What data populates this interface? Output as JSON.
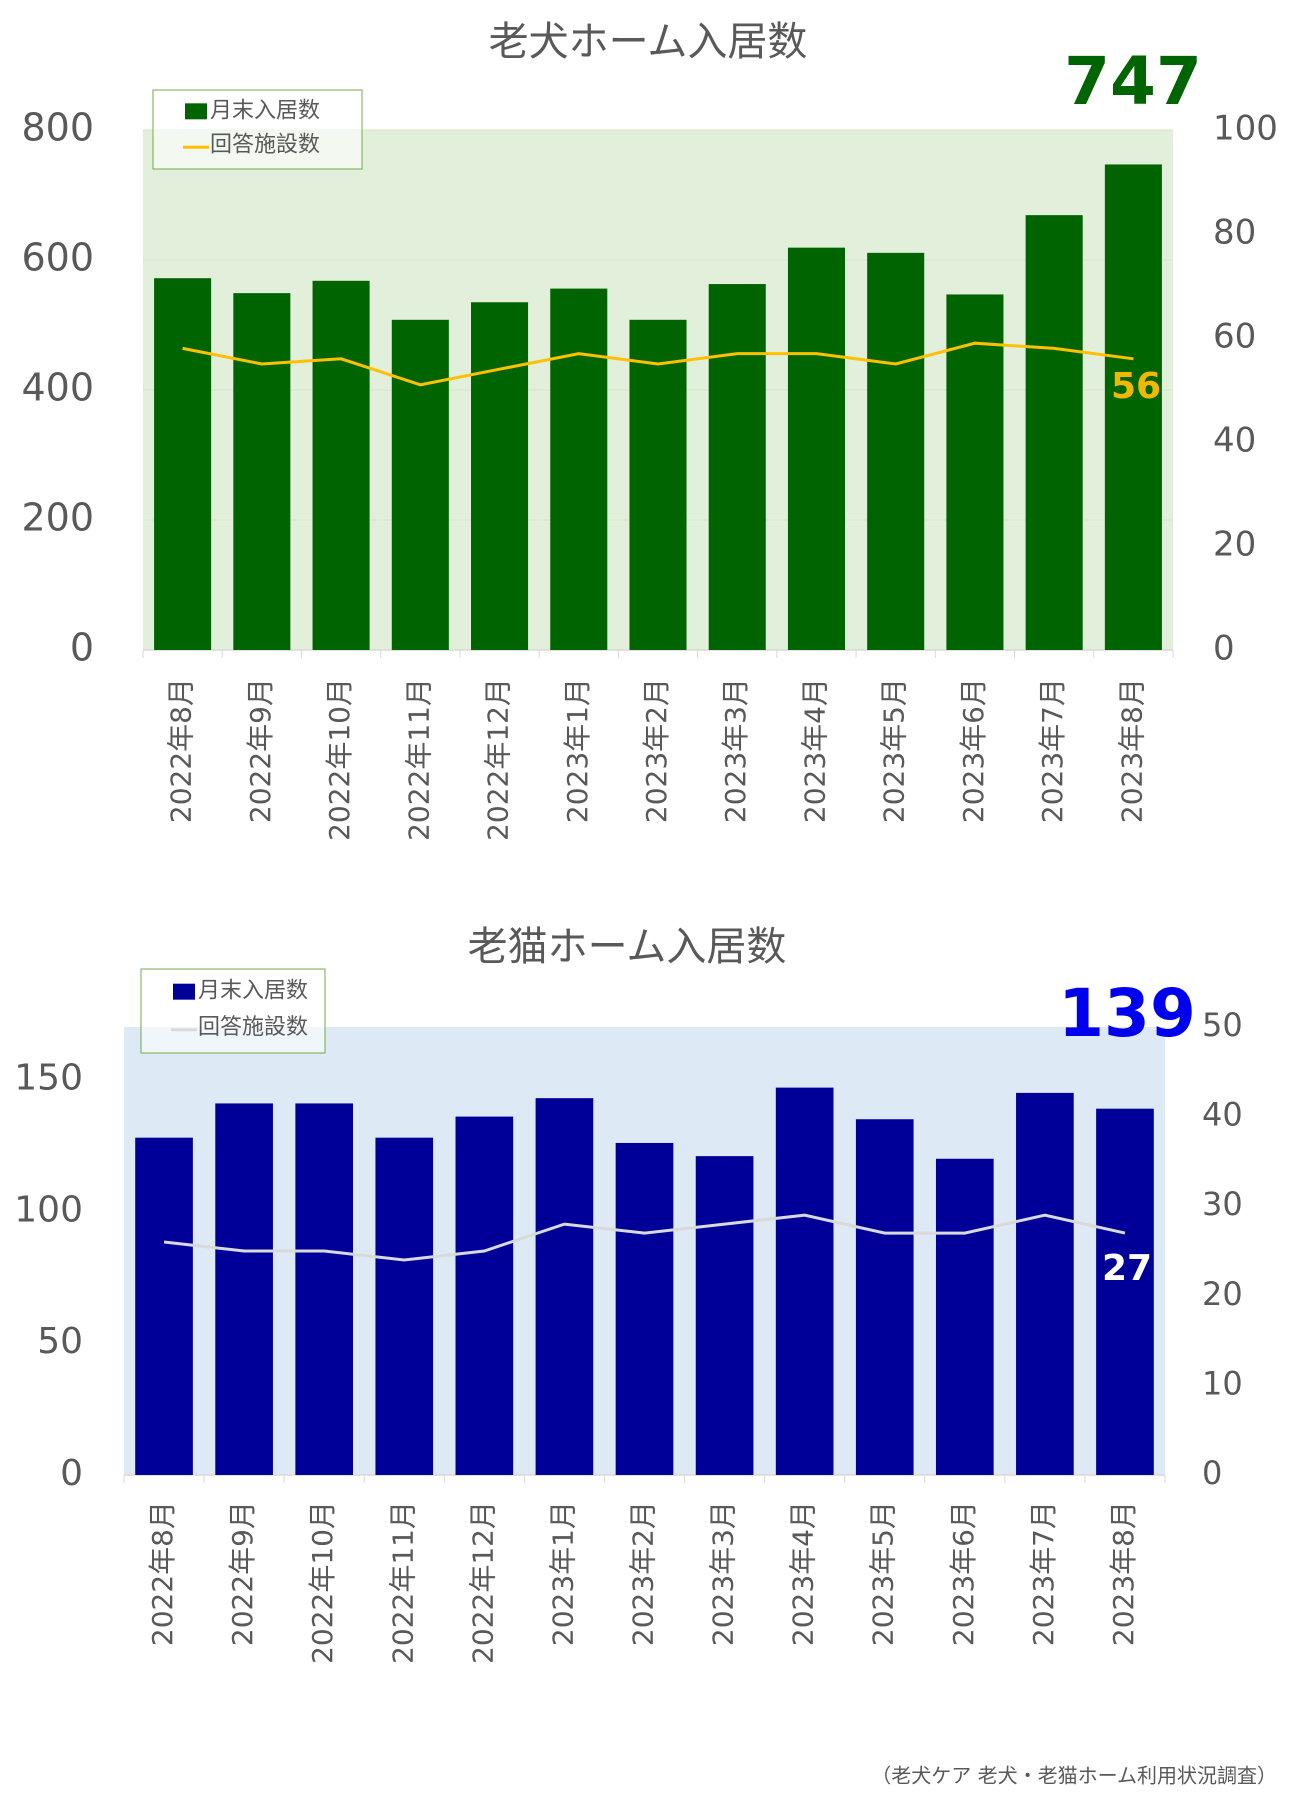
{
  "chart_data": [
    {
      "type": "bar",
      "title": "老犬ホーム入居数",
      "categories": [
        "2022年8月",
        "2022年9月",
        "2022年10月",
        "2022年11月",
        "2022年12月",
        "2023年1月",
        "2023年2月",
        "2023年3月",
        "2023年4月",
        "2023年5月",
        "2023年6月",
        "2023年7月",
        "2023年8月"
      ],
      "series": [
        {
          "name": "月末入居数",
          "type": "bar",
          "color": "#006400",
          "values": [
            572,
            549,
            568,
            508,
            535,
            556,
            508,
            563,
            619,
            611,
            547,
            669,
            747
          ]
        },
        {
          "name": "回答施設数",
          "type": "line",
          "axis": "y2",
          "color": "#ffc000",
          "values": [
            58,
            55,
            56,
            51,
            54,
            57,
            55,
            57,
            57,
            55,
            59,
            58,
            56
          ]
        }
      ],
      "ylim": [
        0,
        800
      ],
      "yticks": [
        0,
        200,
        400,
        600,
        800
      ],
      "y2lim": [
        0,
        100
      ],
      "y2ticks": [
        0,
        20,
        40,
        60,
        80,
        100
      ],
      "grid": true,
      "legend": "top-left",
      "plot_background": "#e2efda"
    },
    {
      "type": "bar",
      "title": "老猫ホーム入居数",
      "categories": [
        "2022年8月",
        "2022年9月",
        "2022年10月",
        "2022年11月",
        "2022年12月",
        "2023年1月",
        "2023年2月",
        "2023年3月",
        "2023年4月",
        "2023年5月",
        "2023年6月",
        "2023年7月",
        "2023年8月"
      ],
      "series": [
        {
          "name": "月末入居数",
          "type": "bar",
          "color": "#000099",
          "values": [
            128,
            141,
            141,
            128,
            136,
            143,
            126,
            121,
            147,
            135,
            120,
            145,
            139
          ]
        },
        {
          "name": "回答施設数",
          "type": "line",
          "axis": "y2",
          "color": "#d9d9d9",
          "values": [
            26,
            25,
            25,
            24,
            25,
            28,
            27,
            28,
            29,
            27,
            27,
            29,
            27
          ]
        }
      ],
      "ylim": [
        0,
        170
      ],
      "yticks": [
        0,
        50,
        100,
        150
      ],
      "y2lim": [
        0,
        50
      ],
      "y2ticks": [
        0,
        10,
        20,
        30,
        40,
        50
      ],
      "grid": false,
      "legend": "top-left",
      "plot_background": "#dde9f5"
    }
  ],
  "source": "（老犬ケア 老犬・老猫ホーム利用状況調査）"
}
